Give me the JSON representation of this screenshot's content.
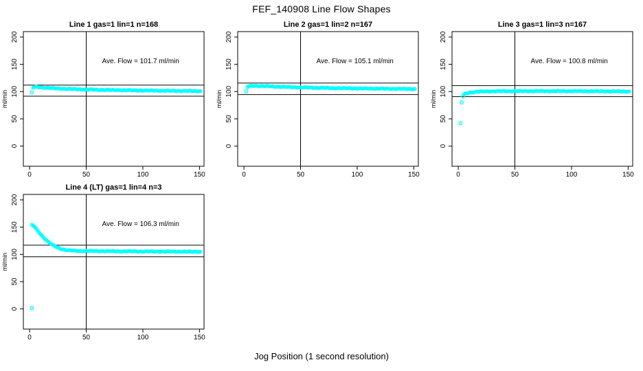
{
  "page": {
    "title": "FEF_140908  Line Flow Shapes",
    "xlabel": "Jog Position (1 second resolution)",
    "background_color": "#ffffff",
    "marker_color": "#00ffff",
    "axis_color": "#000000"
  },
  "chart_data": [
    {
      "type": "scatter",
      "title": "Line 1 gas=1 lin=1 n=168",
      "ylabel": "ml/min",
      "n": 168,
      "ave_flow": 101.7,
      "ave_flow_text": "Ave. Flow =  101.7  ml/min",
      "xlim": [
        -5.5,
        154
      ],
      "ylim": [
        -37,
        210
      ],
      "xticks": [
        0,
        50,
        100,
        150
      ],
      "yticks": [
        0,
        50,
        100,
        150,
        200
      ],
      "vline_x": 50,
      "hlines": [
        111.9,
        91.5
      ],
      "annotation_pos": [
        98,
        152
      ],
      "outliers": [
        [
          2,
          98.5
        ]
      ],
      "band": [
        [
          3,
          107.3
        ],
        [
          4,
          108.2
        ],
        [
          5,
          108.4
        ],
        [
          6,
          108.3
        ],
        [
          8,
          108.0
        ],
        [
          10,
          107.8
        ],
        [
          12,
          107.5
        ],
        [
          15,
          107.0
        ],
        [
          18,
          106.6
        ],
        [
          20,
          106.3
        ],
        [
          25,
          105.7
        ],
        [
          30,
          105.2
        ],
        [
          35,
          104.8
        ],
        [
          40,
          104.4
        ],
        [
          45,
          104.1
        ],
        [
          50,
          103.8
        ],
        [
          60,
          103.3
        ],
        [
          70,
          102.9
        ],
        [
          80,
          102.6
        ],
        [
          90,
          102.3
        ],
        [
          100,
          102.0
        ],
        [
          110,
          101.8
        ],
        [
          120,
          101.5
        ],
        [
          130,
          101.3
        ],
        [
          140,
          101.1
        ],
        [
          151,
          100.9
        ]
      ]
    },
    {
      "type": "scatter",
      "title": "Line 2 gas=1 lin=2 n=167",
      "ylabel": "ml/min",
      "n": 167,
      "ave_flow": 105.1,
      "ave_flow_text": "Ave. Flow =  105.1  ml/min",
      "xlim": [
        -5.5,
        154
      ],
      "ylim": [
        -37,
        210
      ],
      "xticks": [
        0,
        50,
        100,
        150
      ],
      "yticks": [
        0,
        50,
        100,
        150,
        200
      ],
      "vline_x": 50,
      "hlines": [
        115.6,
        94.6
      ],
      "annotation_pos": [
        98,
        152
      ],
      "outliers": [
        [
          2,
          100.5
        ]
      ],
      "band": [
        [
          3,
          108.0
        ],
        [
          4,
          109.3
        ],
        [
          5,
          110.0
        ],
        [
          6,
          110.3
        ],
        [
          8,
          110.5
        ],
        [
          10,
          110.5
        ],
        [
          12,
          110.4
        ],
        [
          15,
          110.2
        ],
        [
          18,
          110.0
        ],
        [
          20,
          109.8
        ],
        [
          25,
          109.4
        ],
        [
          30,
          109.0
        ],
        [
          35,
          108.6
        ],
        [
          40,
          108.2
        ],
        [
          45,
          107.9
        ],
        [
          50,
          107.6
        ],
        [
          60,
          107.1
        ],
        [
          70,
          106.7
        ],
        [
          80,
          106.4
        ],
        [
          90,
          106.1
        ],
        [
          100,
          105.8
        ],
        [
          110,
          105.6
        ],
        [
          120,
          105.4
        ],
        [
          130,
          105.2
        ],
        [
          140,
          105.0
        ],
        [
          151,
          104.8
        ]
      ]
    },
    {
      "type": "scatter",
      "title": "Line 3 gas=1 lin=3 n=167",
      "ylabel": "ml/min",
      "n": 167,
      "ave_flow": 100.8,
      "ave_flow_text": "Ave. Flow =  100.8  ml/min",
      "xlim": [
        -5.5,
        154
      ],
      "ylim": [
        -37,
        210
      ],
      "xticks": [
        0,
        50,
        100,
        150
      ],
      "yticks": [
        0,
        50,
        100,
        150,
        200
      ],
      "vline_x": 50,
      "hlines": [
        110.9,
        90.7
      ],
      "annotation_pos": [
        98,
        152
      ],
      "outliers": [
        [
          2,
          42
        ],
        [
          3,
          80
        ],
        [
          4,
          91
        ]
      ],
      "band": [
        [
          5,
          94.5
        ],
        [
          6,
          95.8
        ],
        [
          7,
          96.7
        ],
        [
          8,
          97.3
        ],
        [
          10,
          98.2
        ],
        [
          12,
          98.8
        ],
        [
          15,
          99.4
        ],
        [
          18,
          99.8
        ],
        [
          20,
          100.0
        ],
        [
          25,
          100.3
        ],
        [
          30,
          100.5
        ],
        [
          40,
          100.7
        ],
        [
          50,
          100.8
        ],
        [
          60,
          100.9
        ],
        [
          70,
          100.9
        ],
        [
          80,
          100.9
        ],
        [
          90,
          100.8
        ],
        [
          100,
          100.8
        ],
        [
          110,
          100.7
        ],
        [
          120,
          100.6
        ],
        [
          130,
          100.5
        ],
        [
          140,
          100.4
        ],
        [
          151,
          100.3
        ]
      ]
    },
    {
      "type": "scatter",
      "title": "Line 4 (LT) gas=1 lin=4 n=3",
      "ylabel": "ml/min",
      "n": 3,
      "ave_flow": 106.3,
      "ave_flow_text": "Ave. Flow =  106.3  ml/min",
      "xlim": [
        -5.5,
        154
      ],
      "ylim": [
        -37,
        210
      ],
      "xticks": [
        0,
        50,
        100,
        150
      ],
      "yticks": [
        0,
        50,
        100,
        150,
        200
      ],
      "vline_x": 50,
      "hlines": [
        116.9,
        95.7
      ],
      "annotation_pos": [
        98,
        152
      ],
      "outliers": [
        [
          2,
          1.5
        ]
      ],
      "band": [
        [
          2,
          154.0
        ],
        [
          3,
          153.3
        ],
        [
          4,
          151.4
        ],
        [
          5,
          149.0
        ],
        [
          6,
          146.4
        ],
        [
          7,
          143.8
        ],
        [
          8,
          141.2
        ],
        [
          9,
          138.7
        ],
        [
          10,
          136.3
        ],
        [
          11,
          134.0
        ],
        [
          12,
          131.8
        ],
        [
          13,
          129.7
        ],
        [
          14,
          127.7
        ],
        [
          15,
          125.8
        ],
        [
          16,
          124.0
        ],
        [
          17,
          122.3
        ],
        [
          18,
          120.7
        ],
        [
          19,
          119.2
        ],
        [
          20,
          117.8
        ],
        [
          21,
          116.5
        ],
        [
          22,
          115.3
        ],
        [
          23,
          114.2
        ],
        [
          24,
          113.2
        ],
        [
          25,
          112.3
        ],
        [
          26,
          111.5
        ],
        [
          27,
          110.8
        ],
        [
          28,
          110.1
        ],
        [
          29,
          109.5
        ],
        [
          30,
          109.0
        ],
        [
          32,
          108.2
        ],
        [
          34,
          107.6
        ],
        [
          36,
          107.2
        ],
        [
          38,
          106.9
        ],
        [
          40,
          106.7
        ],
        [
          45,
          106.4
        ],
        [
          50,
          106.3
        ],
        [
          60,
          106.1
        ],
        [
          70,
          105.9
        ],
        [
          80,
          105.7
        ],
        [
          90,
          105.6
        ],
        [
          100,
          105.4
        ],
        [
          110,
          105.3
        ],
        [
          120,
          105.2
        ],
        [
          130,
          105.1
        ],
        [
          140,
          105.0
        ],
        [
          151,
          104.9
        ]
      ]
    }
  ]
}
